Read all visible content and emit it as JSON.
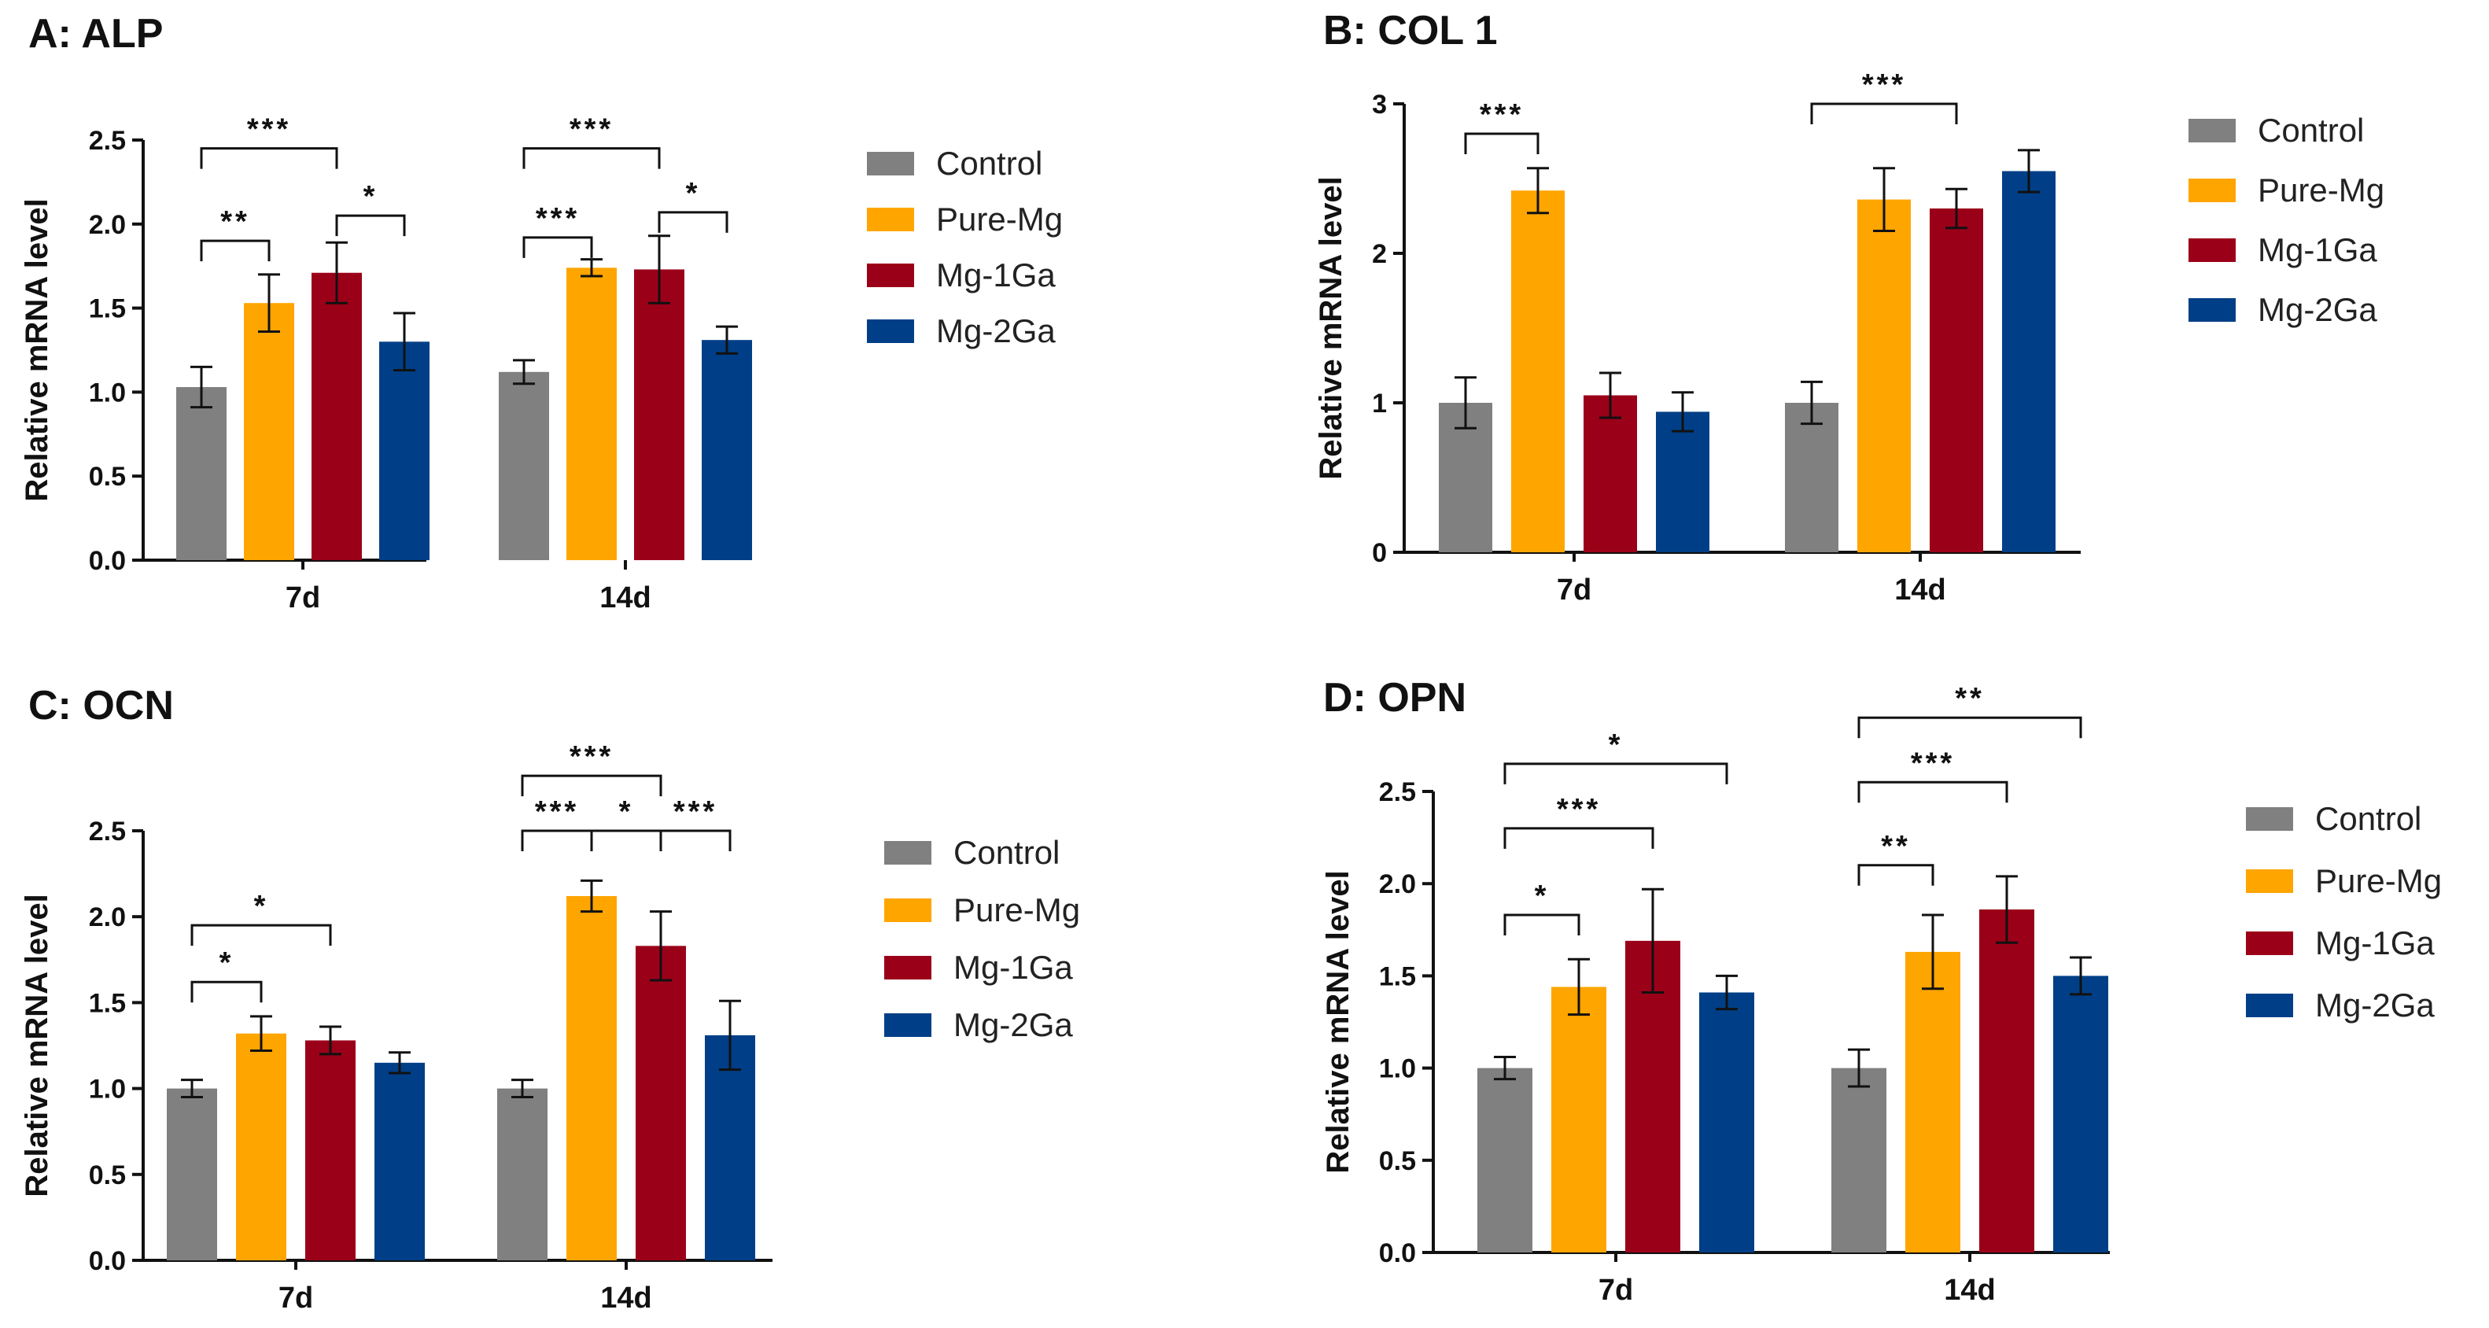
{
  "chart_data": [
    {
      "type": "bar",
      "title": "A: ALP",
      "ylabel": "Relative mRNA level",
      "xlabel": "",
      "categories": [
        "7d",
        "14d"
      ],
      "ylim": [
        0,
        2.5
      ],
      "yticks": [
        "0.0",
        "0.5",
        "1.0",
        "1.5",
        "2.0",
        "2.5"
      ],
      "series": [
        {
          "name": "Control",
          "color": "#808080",
          "values": [
            1.03,
            1.12
          ],
          "errors": [
            0.12,
            0.07
          ]
        },
        {
          "name": "Pure-Mg",
          "color": "#FFA500",
          "values": [
            1.53,
            1.74
          ],
          "errors": [
            0.17,
            0.05
          ]
        },
        {
          "name": "Mg-1Ga",
          "color": "#9B0019",
          "values": [
            1.71,
            1.73
          ],
          "errors": [
            0.18,
            0.2
          ]
        },
        {
          "name": "Mg-2Ga",
          "color": "#003F87",
          "values": [
            1.3,
            1.31
          ],
          "errors": [
            0.17,
            0.08
          ]
        }
      ],
      "significance": [
        {
          "group": 0,
          "a": 0,
          "b": 2,
          "level": 2.45,
          "label": "***"
        },
        {
          "group": 0,
          "a": 0,
          "b": 1,
          "level": 1.9,
          "label": "**"
        },
        {
          "group": 0,
          "a": 2,
          "b": 3,
          "level": 2.05,
          "label": "*"
        },
        {
          "group": 1,
          "a": 0,
          "b": 2,
          "level": 2.45,
          "label": "***"
        },
        {
          "group": 1,
          "a": 0,
          "b": 1,
          "level": 1.92,
          "label": "***"
        },
        {
          "group": 1,
          "a": 2,
          "b": 3,
          "level": 2.07,
          "label": "*"
        }
      ]
    },
    {
      "type": "bar",
      "title": "B: COL 1",
      "ylabel": "Relative mRNA level",
      "xlabel": "",
      "categories": [
        "7d",
        "14d"
      ],
      "ylim": [
        0,
        3
      ],
      "yticks": [
        "0",
        "1",
        "2",
        "3"
      ],
      "series": [
        {
          "name": "Control",
          "color": "#808080",
          "values": [
            1.0,
            1.0
          ],
          "errors": [
            0.17,
            0.14
          ]
        },
        {
          "name": "Pure-Mg",
          "color": "#FFA500",
          "values": [
            2.42,
            2.36
          ],
          "errors": [
            0.15,
            0.21
          ]
        },
        {
          "name": "Mg-1Ga",
          "color": "#9B0019",
          "values": [
            1.05,
            2.3
          ],
          "errors": [
            0.15,
            0.13
          ]
        },
        {
          "name": "Mg-2Ga",
          "color": "#003F87",
          "values": [
            0.94,
            2.55
          ],
          "errors": [
            0.13,
            0.14
          ]
        }
      ],
      "significance": [
        {
          "group": 0,
          "a": 0,
          "b": 1,
          "level": 2.8,
          "label": "***"
        },
        {
          "group": 1,
          "a": 0,
          "b": 2,
          "level": 3.0,
          "label": "***"
        }
      ]
    },
    {
      "type": "bar",
      "title": "C: OCN",
      "ylabel": "Relative mRNA level",
      "xlabel": "",
      "categories": [
        "7d",
        "14d"
      ],
      "ylim": [
        0,
        2.5
      ],
      "yticks": [
        "0.0",
        "0.5",
        "1.0",
        "1.5",
        "2.0",
        "2.5"
      ],
      "series": [
        {
          "name": "Control",
          "color": "#808080",
          "values": [
            1.0,
            1.0
          ],
          "errors": [
            0.05,
            0.05
          ]
        },
        {
          "name": "Pure-Mg",
          "color": "#FFA500",
          "values": [
            1.32,
            2.12
          ],
          "errors": [
            0.1,
            0.09
          ]
        },
        {
          "name": "Mg-1Ga",
          "color": "#9B0019",
          "values": [
            1.28,
            1.83
          ],
          "errors": [
            0.08,
            0.2
          ]
        },
        {
          "name": "Mg-2Ga",
          "color": "#003F87",
          "values": [
            1.15,
            1.31
          ],
          "errors": [
            0.06,
            0.2
          ]
        }
      ],
      "significance": [
        {
          "group": 0,
          "a": 0,
          "b": 2,
          "level": 1.95,
          "label": "*"
        },
        {
          "group": 0,
          "a": 0,
          "b": 1,
          "level": 1.62,
          "label": "*"
        },
        {
          "group": 1,
          "a": 0,
          "b": 2,
          "level": 2.82,
          "label": "***"
        },
        {
          "group": 1,
          "a": 0,
          "b": 1,
          "level": 2.5,
          "label": "***"
        },
        {
          "group": 1,
          "a": 1,
          "b": 2,
          "level": 2.5,
          "label": "*"
        },
        {
          "group": 1,
          "a": 2,
          "b": 3,
          "level": 2.5,
          "label": "***"
        }
      ]
    },
    {
      "type": "bar",
      "title": "D: OPN",
      "ylabel": "Relative mRNA level",
      "xlabel": "",
      "categories": [
        "7d",
        "14d"
      ],
      "ylim": [
        0,
        2.5
      ],
      "yticks": [
        "0.0",
        "0.5",
        "1.0",
        "1.5",
        "2.0",
        "2.5"
      ],
      "series": [
        {
          "name": "Control",
          "color": "#808080",
          "values": [
            1.0,
            1.0
          ],
          "errors": [
            0.06,
            0.1
          ]
        },
        {
          "name": "Pure-Mg",
          "color": "#FFA500",
          "values": [
            1.44,
            1.63
          ],
          "errors": [
            0.15,
            0.2
          ]
        },
        {
          "name": "Mg-1Ga",
          "color": "#9B0019",
          "values": [
            1.69,
            1.86
          ],
          "errors": [
            0.28,
            0.18
          ]
        },
        {
          "name": "Mg-2Ga",
          "color": "#003F87",
          "values": [
            1.41,
            1.5
          ],
          "errors": [
            0.09,
            0.1
          ]
        }
      ],
      "significance": [
        {
          "group": 0,
          "a": 0,
          "b": 1,
          "level": 1.83,
          "label": "*"
        },
        {
          "group": 0,
          "a": 0,
          "b": 2,
          "level": 2.3,
          "label": "***"
        },
        {
          "group": 0,
          "a": 0,
          "b": 3,
          "level": 2.65,
          "label": "*"
        },
        {
          "group": 1,
          "a": 0,
          "b": 1,
          "level": 2.1,
          "label": "**"
        },
        {
          "group": 1,
          "a": 0,
          "b": 2,
          "level": 2.55,
          "label": "***"
        },
        {
          "group": 1,
          "a": 0,
          "b": 3,
          "level": 2.9,
          "label": "**"
        }
      ]
    }
  ]
}
